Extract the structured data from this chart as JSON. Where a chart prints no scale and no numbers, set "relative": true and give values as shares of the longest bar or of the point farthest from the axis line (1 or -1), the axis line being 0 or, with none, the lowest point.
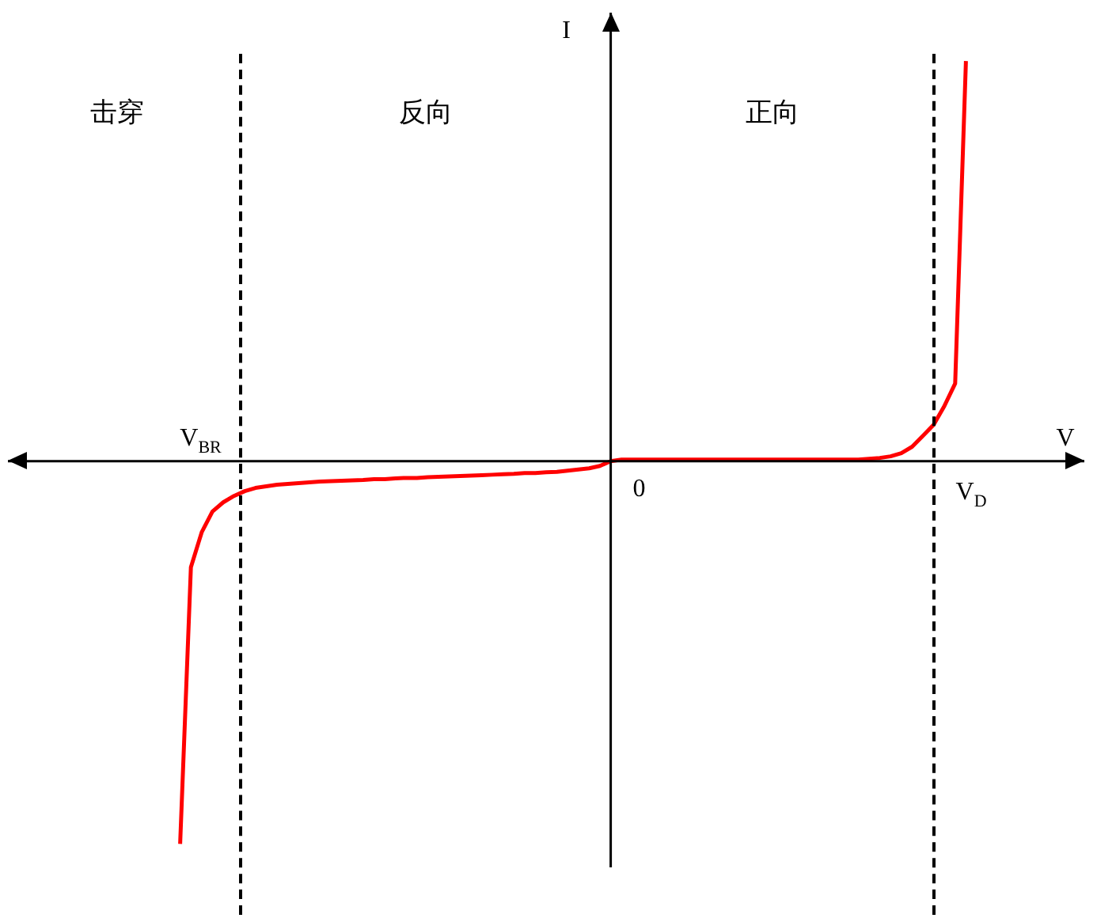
{
  "chart_data": {
    "type": "line",
    "relative": true,
    "xlabel": "V",
    "ylabel": "I",
    "categories": [
      null,
      null,
      null,
      null,
      null,
      null,
      null,
      null,
      null,
      null,
      null,
      null,
      null,
      null,
      null,
      null,
      null,
      null,
      null,
      null,
      null,
      null,
      null,
      null,
      null,
      null,
      null,
      null,
      null,
      null,
      null,
      null,
      null,
      null,
      null,
      null,
      null,
      null,
      null,
      null,
      null,
      null,
      null,
      null,
      null,
      null,
      null,
      null,
      null,
      null,
      null,
      null,
      null,
      null,
      null,
      null,
      null,
      null,
      null,
      null,
      null,
      null,
      null,
      null,
      null,
      null,
      null,
      null,
      null,
      null,
      null,
      null,
      null,
      null,
      null,
      null,
      null,
      null,
      null,
      null,
      null,
      null,
      null,
      null,
      null,
      null,
      null,
      null,
      null,
      null,
      null,
      null,
      null,
      null,
      null,
      null,
      null,
      null,
      null,
      null,
      null
    ],
    "series": [
      {
        "color": "#ff0000",
        "values": [
          null,
          null,
          null,
          null,
          null,
          null,
          null,
          null,
          null,
          null,
          null,
          null,
          null,
          null,
          null,
          null,
          -0.957,
          -0.265,
          -0.178,
          -0.126,
          -0.103,
          -0.087,
          -0.075,
          -0.067,
          -0.063,
          -0.059,
          -0.057,
          -0.055,
          -0.053,
          -0.051,
          -0.05,
          -0.049,
          -0.048,
          -0.047,
          -0.045,
          -0.045,
          -0.043,
          -0.042,
          -0.042,
          -0.04,
          -0.039,
          -0.038,
          -0.037,
          -0.036,
          -0.035,
          -0.034,
          -0.033,
          -0.032,
          -0.03,
          -0.03,
          -0.028,
          -0.027,
          -0.024,
          -0.021,
          -0.018,
          -0.012,
          0,
          0.004,
          0.004,
          0.004,
          0.004,
          0.004,
          0.004,
          0.004,
          0.004,
          0.004,
          0.004,
          0.004,
          0.004,
          0.004,
          0.004,
          0.004,
          0.004,
          0.004,
          0.004,
          0.004,
          0.004,
          0.004,
          0.004,
          0.004,
          0.006,
          0.008,
          0.012,
          0.02,
          0.036,
          0.063,
          0.091,
          0.138,
          0.194,
          1.0,
          null,
          null,
          null,
          null,
          null,
          null,
          null,
          null,
          null,
          null,
          null
        ]
      }
    ],
    "annotations": [
      "击穿",
      "反向",
      "正向",
      {
        "text": "0",
        "y": 0
      },
      "V$_{BR}$",
      "V$_{D}$"
    ],
    "marker": "none",
    "line_style": "solid",
    "legend": false
  }
}
